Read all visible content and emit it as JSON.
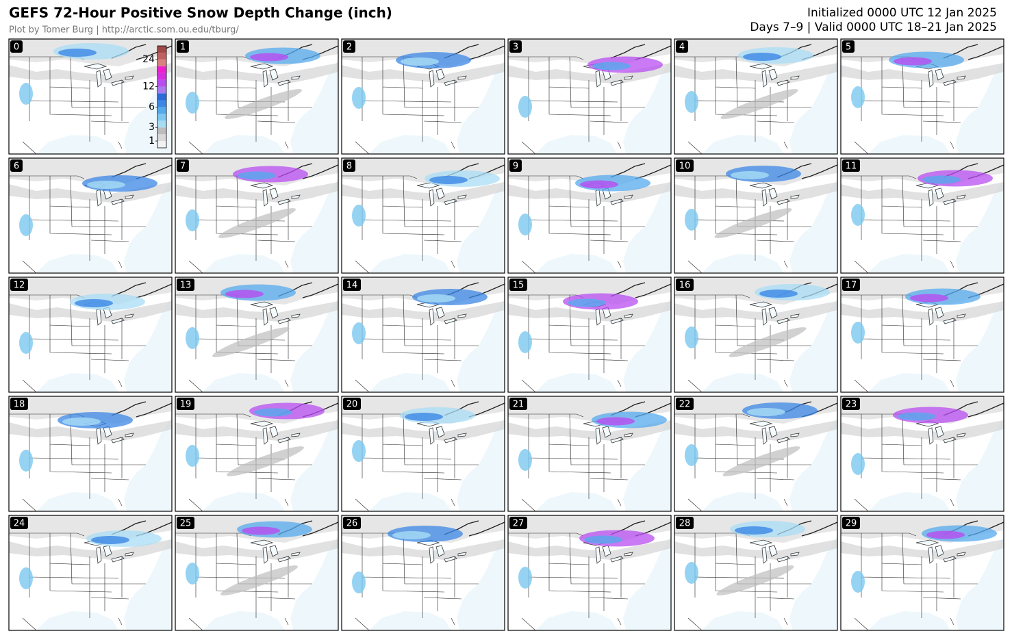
{
  "header": {
    "title": "GEFS 72-Hour Positive Snow Depth Change (inch)",
    "credit": "Plot by Tomer Burg | http://arctic.som.ou.edu/tburg/",
    "initialized": "Initialized 0000 UTC 12 Jan 2025",
    "valid": "Days 7–9 | Valid 0000 UTC 18–21 Jan 2025"
  },
  "panels": [
    "0",
    "1",
    "2",
    "3",
    "4",
    "5",
    "6",
    "7",
    "8",
    "9",
    "10",
    "11",
    "12",
    "13",
    "14",
    "15",
    "16",
    "17",
    "18",
    "19",
    "20",
    "21",
    "22",
    "23",
    "24",
    "25",
    "26",
    "27",
    "28",
    "29"
  ],
  "colorbar": {
    "bounds": [
      0.1,
      1,
      2,
      3,
      4,
      5,
      6,
      8,
      10,
      12,
      15,
      18,
      21,
      24,
      30,
      36
    ],
    "colors": [
      "#f2f2f2",
      "#d9d9d9",
      "#bdbdbd",
      "#a8dcf5",
      "#7cc8f0",
      "#55aaee",
      "#3c87e6",
      "#2a6bd8",
      "#a97bf0",
      "#b84ef0",
      "#d42ee0",
      "#ee1ecf",
      "#d98080",
      "#c06060",
      "#a04848"
    ],
    "ticks": [
      1,
      3,
      6,
      12,
      24
    ]
  }
}
